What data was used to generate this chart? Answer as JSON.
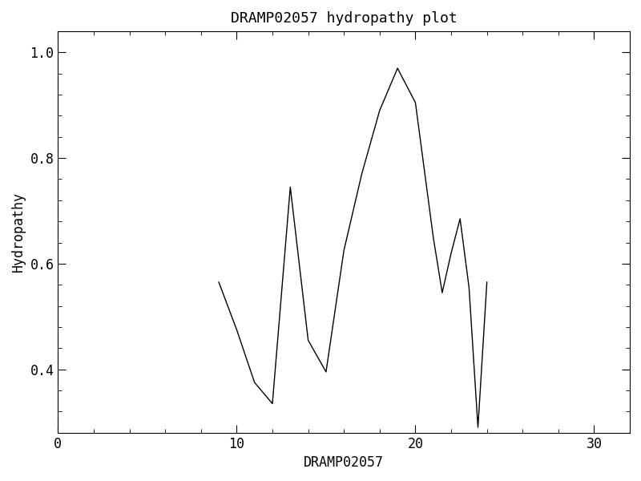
{
  "title": "DRAMP02057 hydropathy plot",
  "xlabel": "DRAMP02057",
  "ylabel": "Hydropathy",
  "xlim": [
    0,
    32
  ],
  "ylim": [
    0.28,
    1.04
  ],
  "xticks": [
    0,
    10,
    20,
    30
  ],
  "yticks": [
    0.4,
    0.6,
    0.8,
    1.0
  ],
  "line_color": "#000000",
  "line_width": 1.0,
  "background_color": "#ffffff",
  "x": [
    9,
    10,
    11,
    12,
    13,
    14,
    15,
    16,
    17,
    18,
    19,
    20,
    21,
    21.5,
    22,
    22.5,
    23,
    23.5,
    24
  ],
  "y": [
    0.565,
    0.475,
    0.375,
    0.335,
    0.745,
    0.455,
    0.395,
    0.625,
    0.77,
    0.89,
    0.97,
    0.905,
    0.65,
    0.545,
    0.62,
    0.685,
    0.555,
    0.29,
    0.565
  ],
  "title_fontsize": 13,
  "label_fontsize": 12,
  "tick_fontsize": 12,
  "font_family": "DejaVu Sans Mono"
}
